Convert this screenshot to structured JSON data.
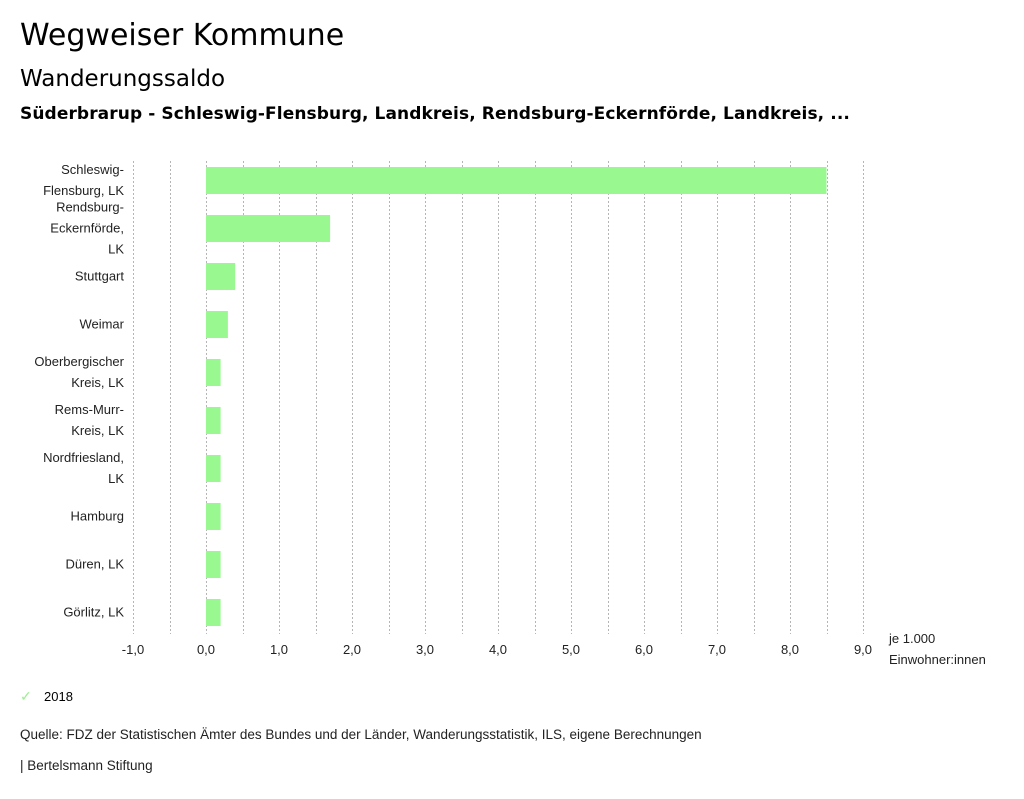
{
  "header": {
    "title": "Wegweiser Kommune",
    "subtitle": "Wanderungssaldo",
    "region": "Süderbrarup - Schleswig-Flensburg, Landkreis, Rendsburg-Eckernförde, Landkreis, ..."
  },
  "chart_data": {
    "type": "bar",
    "orientation": "horizontal",
    "title": "Wanderungssaldo",
    "categories": [
      [
        "Schleswig-",
        "Flensburg, LK"
      ],
      [
        "Rendsburg-",
        "Eckernförde,",
        "LK"
      ],
      [
        "Stuttgart"
      ],
      [
        "Weimar"
      ],
      [
        "Oberbergischer",
        "Kreis, LK"
      ],
      [
        "Rems-Murr-",
        "Kreis, LK"
      ],
      [
        "Nordfriesland,",
        "LK"
      ],
      [
        "Hamburg"
      ],
      [
        "Düren, LK"
      ],
      [
        "Görlitz, LK"
      ]
    ],
    "series": [
      {
        "name": "2018",
        "color": "#99f990",
        "values": [
          8.5,
          1.7,
          0.4,
          0.3,
          0.2,
          0.2,
          0.2,
          0.2,
          0.2,
          0.2
        ]
      }
    ],
    "xlim": [
      -1.0,
      9.0
    ],
    "xticks": [
      -1,
      0,
      1,
      2,
      3,
      4,
      5,
      6,
      7,
      8,
      9
    ],
    "xtick_labels": [
      "-1,0",
      "0,0",
      "1,0",
      "2,0",
      "3,0",
      "4,0",
      "5,0",
      "6,0",
      "7,0",
      "8,0",
      "9,0"
    ],
    "minor_grid_step": 0.5,
    "grid": true,
    "xlabel": [
      "je 1.000",
      "Einwohner:innen"
    ],
    "ylabel": "",
    "legend": {
      "position": "bottom-left",
      "entries": [
        "2018"
      ]
    }
  },
  "legend": {
    "label": "2018",
    "icon": "check-icon"
  },
  "footer": {
    "source": "Quelle: FDZ der Statistischen Ämter des Bundes und der Länder, Wanderungsstatistik, ILS, eigene Berechnungen",
    "brand": "| Bertelsmann Stiftung"
  }
}
